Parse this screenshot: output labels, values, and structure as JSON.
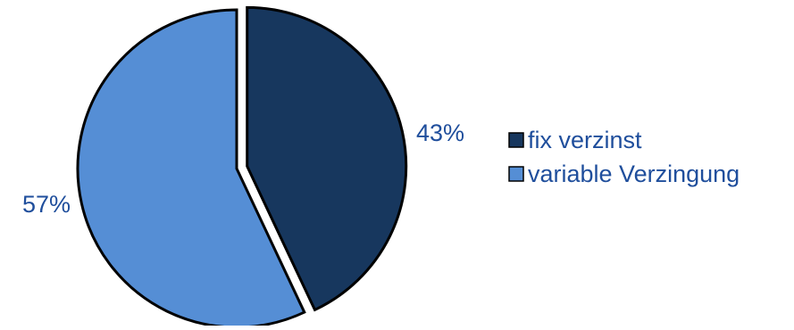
{
  "chart_data": {
    "type": "pie",
    "title": "",
    "slices": [
      {
        "label": "fix verzinst",
        "value": 43,
        "display": "43%",
        "color": "#17375e"
      },
      {
        "label": "variable Verzingung",
        "value": 57,
        "display": "57%",
        "color": "#558ed5"
      }
    ],
    "exploded_slice": "fix verzinst",
    "start_angle_deg": 0,
    "direction": "clockwise",
    "legend_position": "right",
    "label_color": "#1f4e9c",
    "slice_outline_color": "#000000"
  }
}
